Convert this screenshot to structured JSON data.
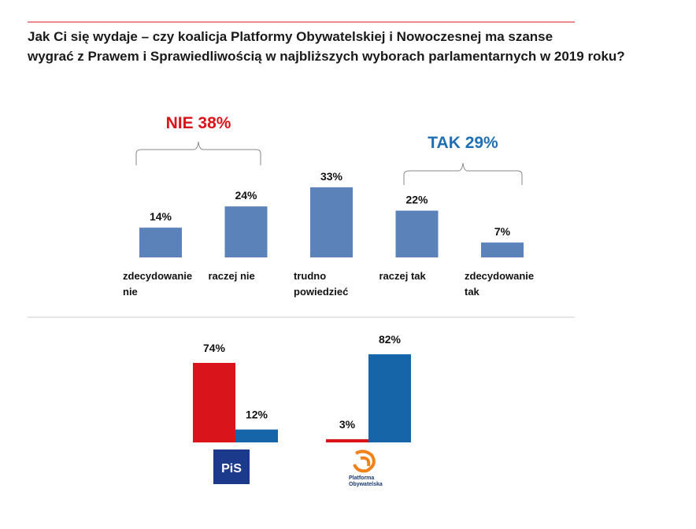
{
  "title": [
    "Jak Ci się wydaje – czy koalicja Platformy Obywatelskiej i Nowoczesnej ma szanse",
    "wygrać z Prawem i Sprawiedliwością w najbliższych wyborach parlamentarnych w 2019 roku?"
  ],
  "chart_data": [
    {
      "type": "bar",
      "categories": [
        "zdecydowanie nie",
        "raczej nie",
        "trudno powiedzieć",
        "raczej tak",
        "zdecydowanie tak"
      ],
      "values": [
        14,
        24,
        33,
        22,
        7
      ],
      "value_labels": [
        "14%",
        "24%",
        "33%",
        "22%",
        "7%"
      ],
      "color": "#5b82b9",
      "annotations": [
        {
          "text": "NIE 38%",
          "color": "#d9141b"
        },
        {
          "text": "TAK 29%",
          "color": "#1f6fb2"
        }
      ]
    },
    {
      "type": "grouped-bar",
      "categories": [
        "PiS",
        "Platforma Obywatelska"
      ],
      "series": [
        {
          "color": "#d9141b",
          "values": [
            74,
            3
          ],
          "value_labels": [
            "74%",
            "3%"
          ]
        },
        {
          "color": "#1565a8",
          "values": [
            12,
            82
          ],
          "value_labels": [
            "12%",
            "82%"
          ]
        }
      ]
    }
  ]
}
